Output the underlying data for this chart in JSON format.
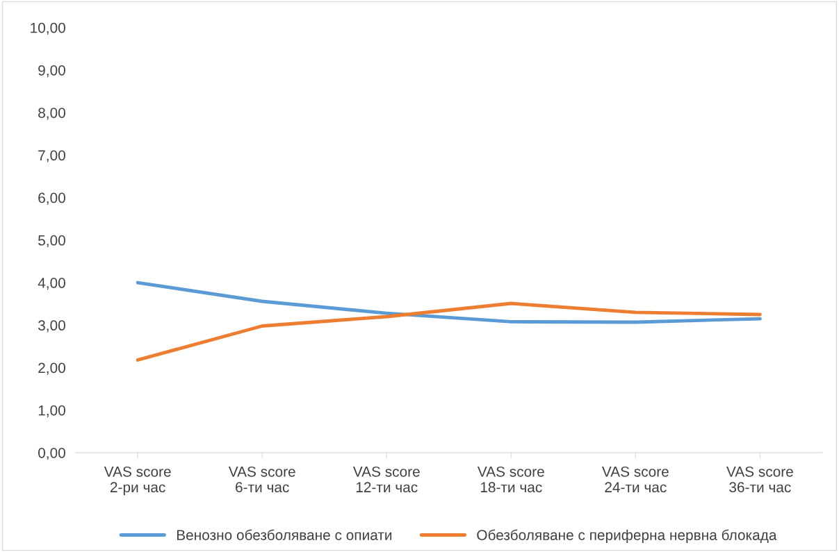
{
  "chart_data": {
    "type": "line",
    "categories": [
      "VAS score\n2-ри час",
      "VAS score\n6-ти час",
      "VAS score\n12-ти час",
      "VAS score\n18-ти час",
      "VAS score\n24-ти час",
      "VAS score\n36-ти час"
    ],
    "series": [
      {
        "name": "Венозно обезболяване с опиати",
        "color": "#5b9bd5",
        "values": [
          4.0,
          3.56,
          3.28,
          3.08,
          3.07,
          3.15
        ]
      },
      {
        "name": "Обезболяване с периферна нервна блокада",
        "color": "#ed7d31",
        "values": [
          2.18,
          2.98,
          3.2,
          3.51,
          3.3,
          3.25
        ]
      }
    ],
    "ylim": [
      0,
      10
    ],
    "yticks": [
      {
        "value": 0,
        "label": "0,00"
      },
      {
        "value": 1,
        "label": "1,00"
      },
      {
        "value": 2,
        "label": "2,00"
      },
      {
        "value": 3,
        "label": "3,00"
      },
      {
        "value": 4,
        "label": "4,00"
      },
      {
        "value": 5,
        "label": "5,00"
      },
      {
        "value": 6,
        "label": "6,00"
      },
      {
        "value": 7,
        "label": "7,00"
      },
      {
        "value": 8,
        "label": "8,00"
      },
      {
        "value": 9,
        "label": "9,00"
      },
      {
        "value": 10,
        "label": "10,00"
      }
    ],
    "grid": false,
    "legend": "bottom",
    "marker": "none",
    "line_style": "solid"
  }
}
